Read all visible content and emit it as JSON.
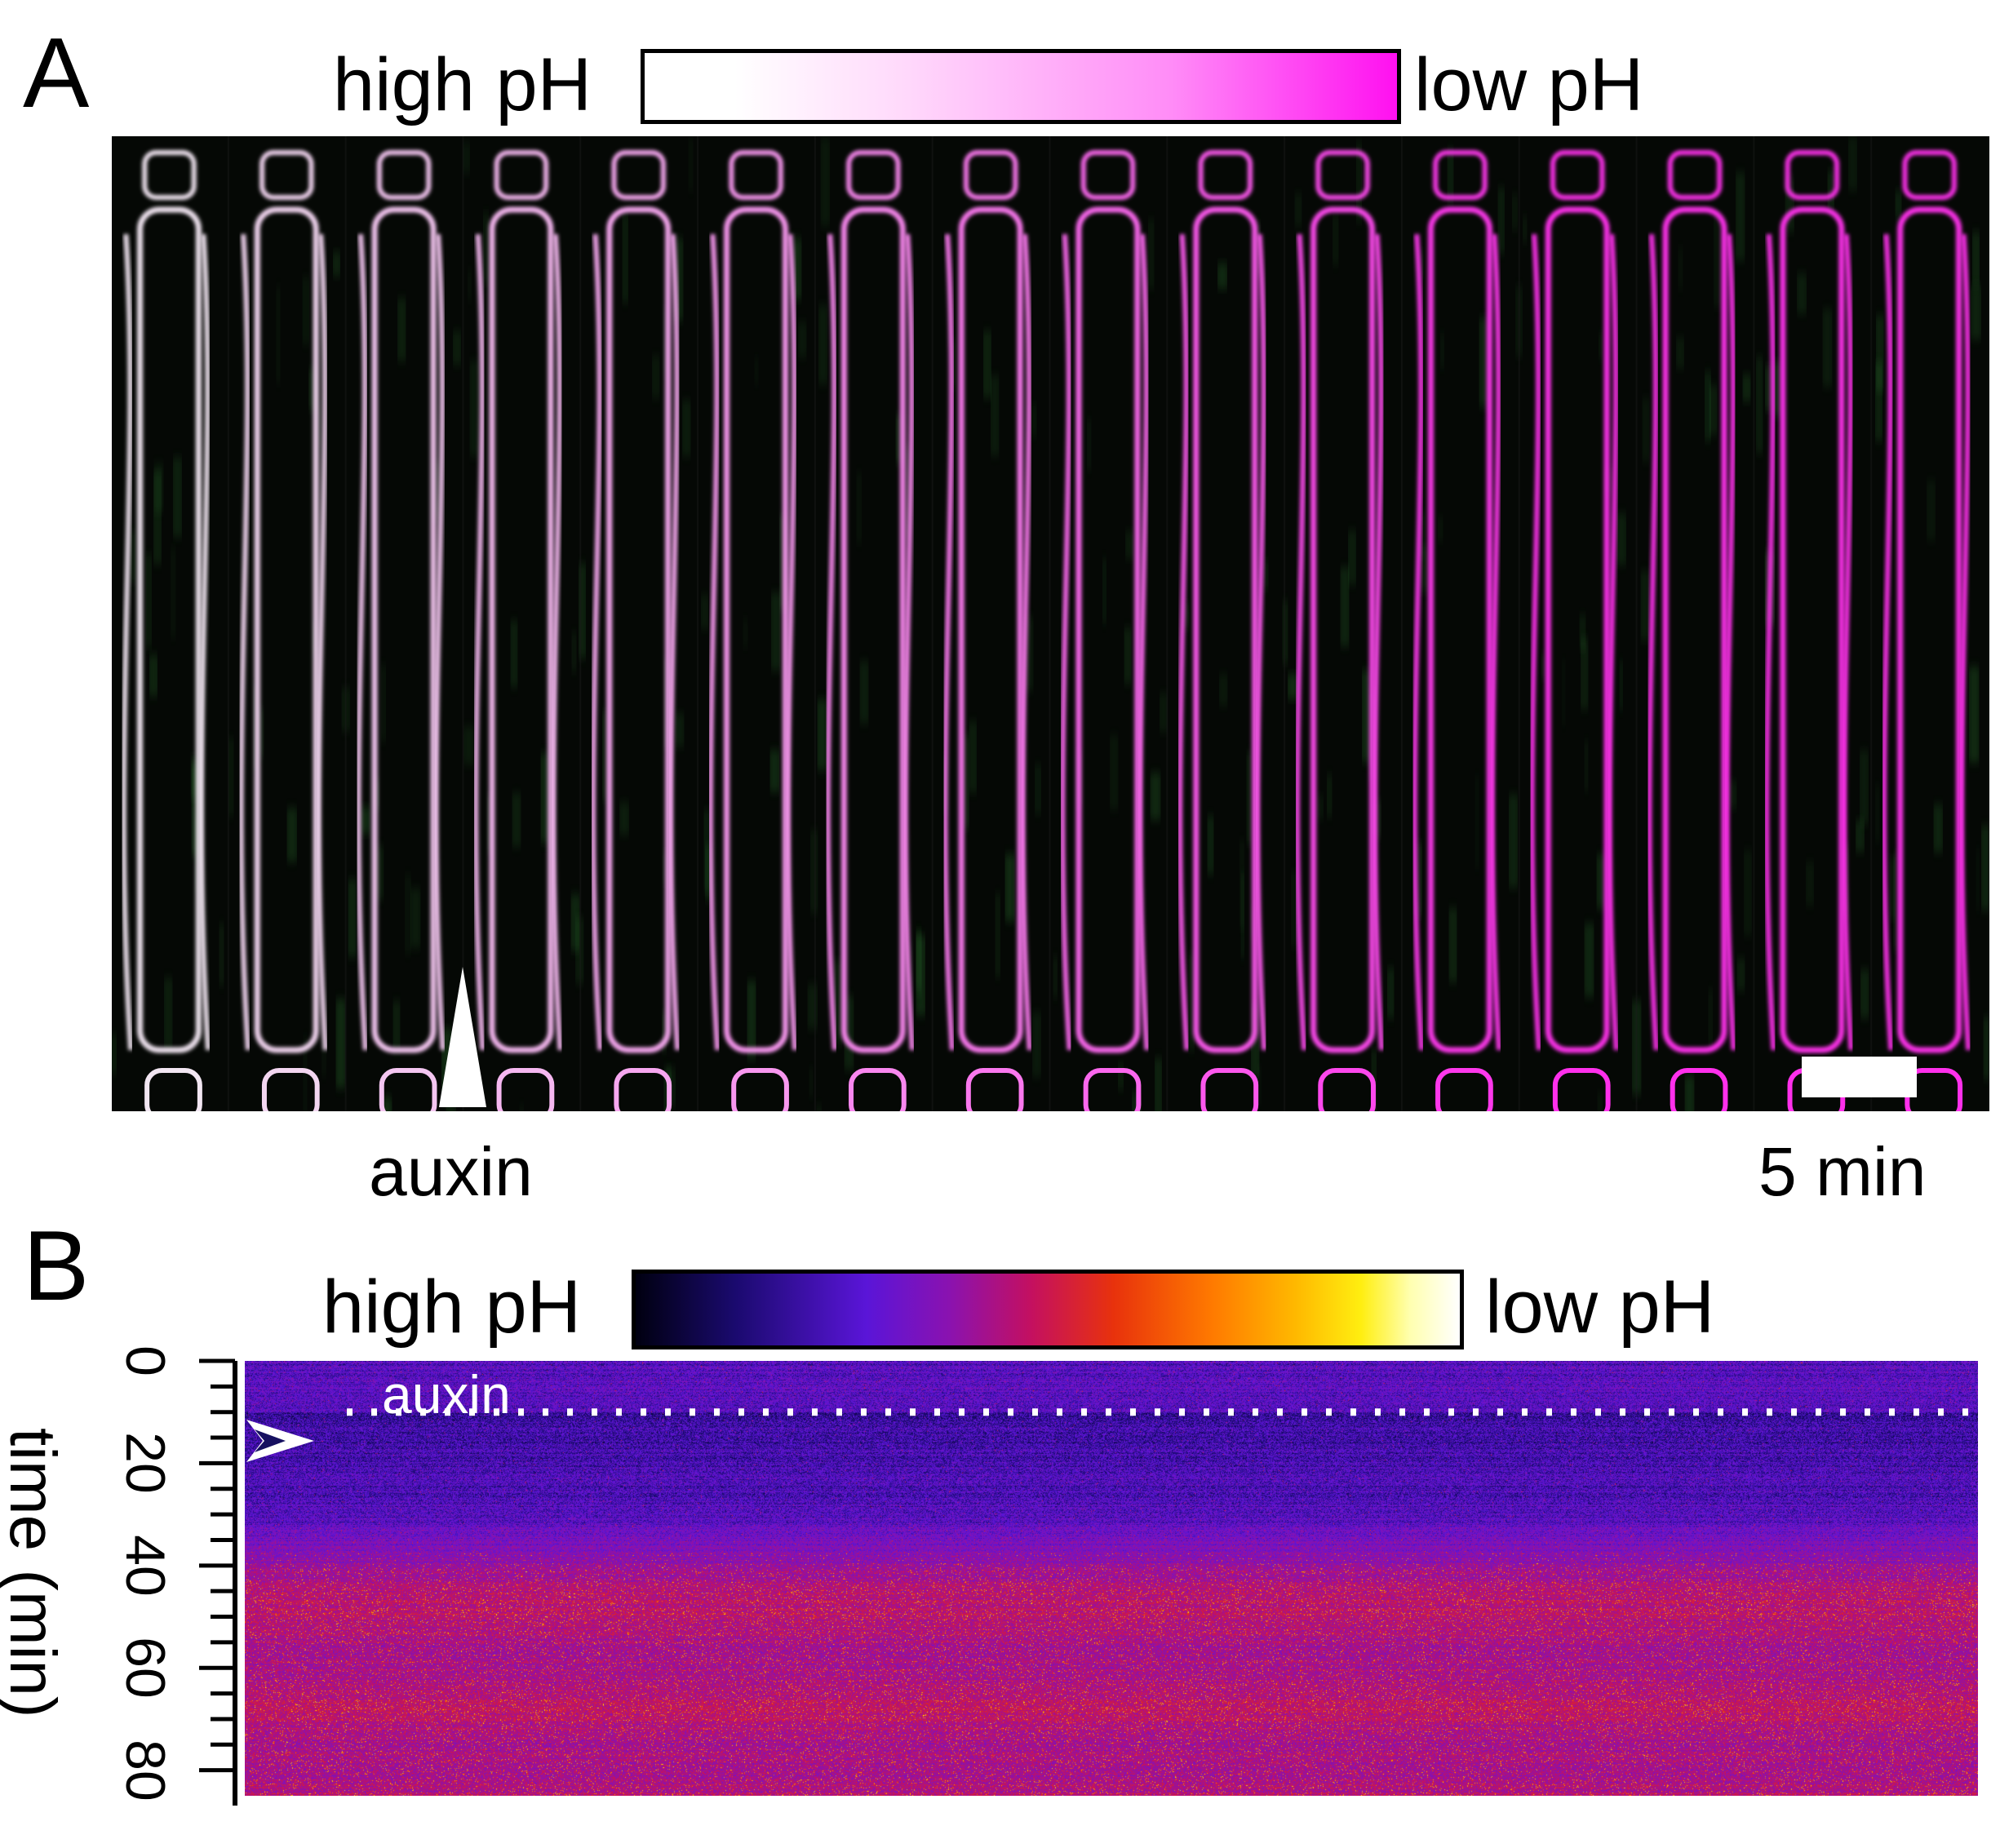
{
  "panel_a": {
    "letter": "A",
    "colorbar": {
      "left_label": "high pH",
      "right_label": "low pH",
      "colors": [
        "#ffffff",
        "#ffd8fb",
        "#ff8cf7",
        "#ff10f0"
      ]
    },
    "treatment_label": "auxin",
    "scale_bar_label": "5 min",
    "channel_colors": {
      "green": "#3fa040",
      "magenta": "#ff2ee8",
      "background": "#050805"
    },
    "frame_count": 16
  },
  "panel_b": {
    "letter": "B",
    "colorbar": {
      "left_label": "high pH",
      "right_label": "low pH",
      "colors": [
        "#000010",
        "#1a0a6e",
        "#5a15d8",
        "#8a12b0",
        "#c41060",
        "#e8320c",
        "#ff7a00",
        "#ffb800",
        "#ffee10",
        "#ffffb0",
        "#ffffff"
      ]
    },
    "treatment_label": "auxin",
    "y_axis": {
      "label": "time (min)",
      "ticks": [
        "0",
        "20",
        "40",
        "60",
        "80"
      ],
      "range": [
        0,
        85
      ]
    },
    "auxin_time_min": 10
  }
}
